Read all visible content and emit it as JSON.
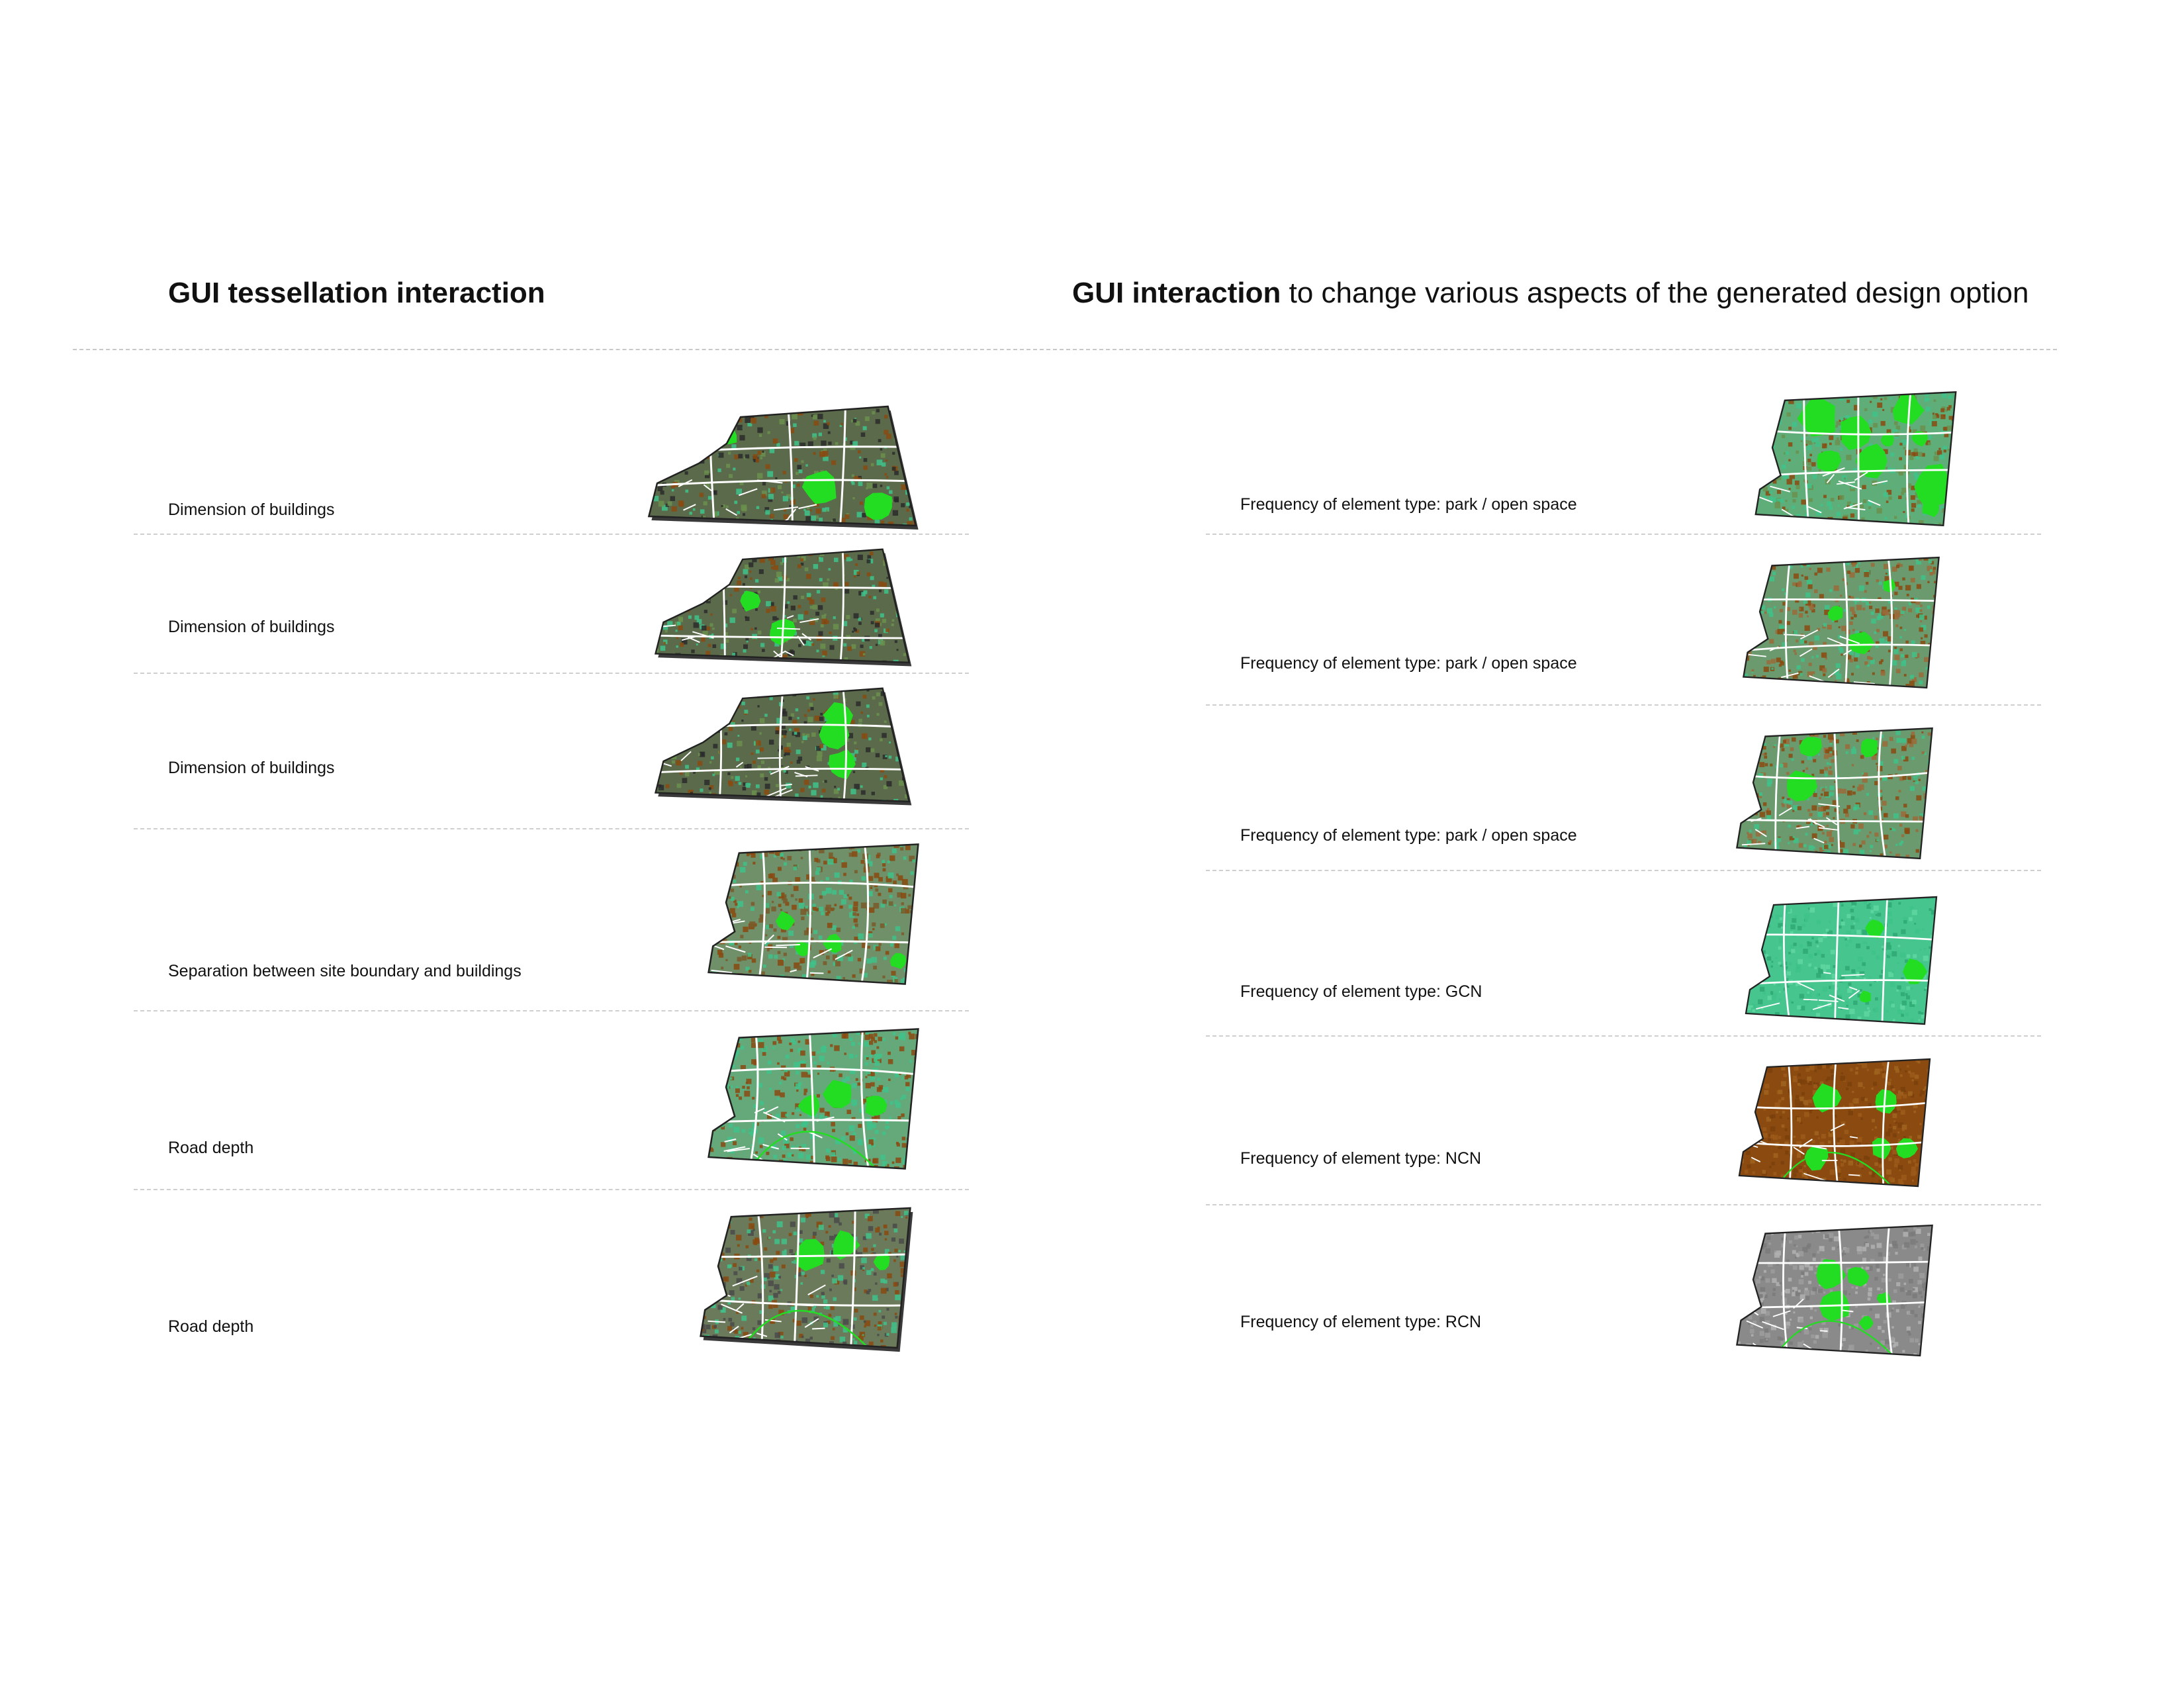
{
  "left_panel": {
    "heading_bold": "GUI tessellation interaction",
    "rows": [
      {
        "label": "Dimension of buildings"
      },
      {
        "label": "Dimension of buildings"
      },
      {
        "label": "Dimension of buildings"
      },
      {
        "label": "Separation between site boundary and buildings"
      },
      {
        "label": "Road depth"
      },
      {
        "label": "Road depth"
      }
    ]
  },
  "right_panel": {
    "heading_bold": "GUI interaction",
    "heading_rest": " to change various aspects of the generated design option",
    "rows": [
      {
        "label": "Frequency of element type: park / open space"
      },
      {
        "label": "Frequency of element type: park / open space"
      },
      {
        "label": "Frequency of element type: park / open space"
      },
      {
        "label": "Frequency of element type: GCN"
      },
      {
        "label": "Frequency of element type: NCN"
      },
      {
        "label": "Frequency of element type: RCN"
      }
    ]
  },
  "colors": {
    "park_green": "#22dd22",
    "gcn_teal": "#3fc28a",
    "ncn_brown": "#8a4a10",
    "rcn_grey": "#8a8a8a",
    "road_white": "#ffffff",
    "outline": "#222222"
  }
}
